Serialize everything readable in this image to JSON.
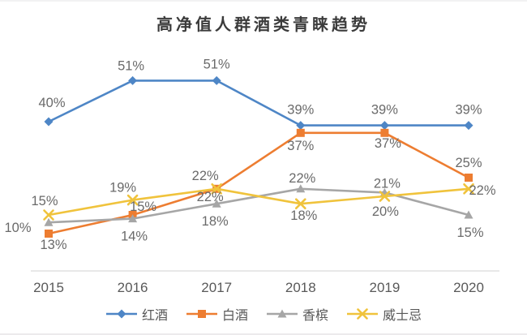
{
  "chart_data": {
    "type": "line",
    "title": "高净值人群酒类青睐趋势",
    "categories": [
      "2015",
      "2016",
      "2017",
      "2018",
      "2019",
      "2020"
    ],
    "unit": "%",
    "series": [
      {
        "key": "red-wine",
        "name": "红酒",
        "color": "#4E86C6",
        "marker": "diamond",
        "values": [
          40,
          51,
          51,
          39,
          39,
          39
        ]
      },
      {
        "key": "baijiu",
        "name": "白酒",
        "color": "#ED7D31",
        "marker": "square",
        "values": [
          10,
          15,
          22,
          37,
          37,
          25
        ]
      },
      {
        "key": "champagne",
        "name": "香槟",
        "color": "#A6A6A6",
        "marker": "triangle",
        "values": [
          13,
          14,
          18,
          22,
          21,
          15
        ]
      },
      {
        "key": "whisky",
        "name": "威士忌",
        "color": "#F0C33C",
        "marker": "x",
        "values": [
          15,
          19,
          22,
          18,
          20,
          22
        ]
      }
    ],
    "ylim": [
      0,
      60
    ],
    "grid": false,
    "legend_position": "bottom",
    "data_label_color": "#6a6a6a",
    "axis_text_color": "#595959",
    "axis_line_color": "#d9d9d9"
  }
}
